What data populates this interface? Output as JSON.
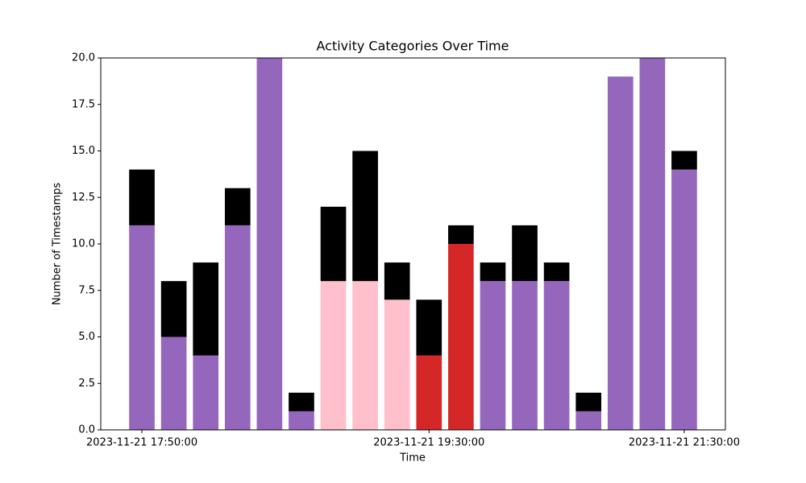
{
  "chart_data": {
    "type": "stacked_bar",
    "title": "Activity Categories Over Time",
    "x_label": "Time",
    "y_label": "Number of Timestamps",
    "categories": [
      "2023-11-21 17:50:00",
      null,
      null,
      null,
      null,
      null,
      null,
      null,
      null,
      "2023-11-21 19:30:00",
      null,
      null,
      null,
      null,
      null,
      null,
      null,
      "2023-11-21 21:30:00"
    ],
    "series": [
      {
        "colors": [
          "#9467bd",
          "#9467bd",
          "#9467bd",
          "#9467bd",
          "#9467bd",
          "#9467bd",
          "#ffc0cb",
          "#ffc0cb",
          "#ffc0cb",
          "#d62728",
          "#d62728",
          "#9467bd",
          "#9467bd",
          "#9467bd",
          "#9467bd",
          "#9467bd",
          "#9467bd",
          "#9467bd"
        ],
        "values": [
          11,
          5,
          4,
          11,
          20,
          1,
          8,
          8,
          7,
          4,
          10,
          8,
          8,
          8,
          1,
          19,
          20,
          14
        ]
      },
      {
        "color": "#000000",
        "values": [
          3,
          3,
          5,
          2,
          0,
          1,
          4,
          7,
          2,
          3,
          1,
          1,
          3,
          1,
          1,
          0,
          0,
          1
        ]
      }
    ],
    "ylim": [
      0,
      20
    ],
    "yticks": [
      {
        "value": 0,
        "label": "0.0"
      },
      2.5,
      {
        "value": 5,
        "label": "5.0"
      },
      7.5,
      {
        "value": 10,
        "label": "10.0"
      },
      12.5,
      {
        "value": 15,
        "label": "15.0"
      },
      17.5,
      {
        "value": 20,
        "label": "20.0"
      }
    ]
  }
}
